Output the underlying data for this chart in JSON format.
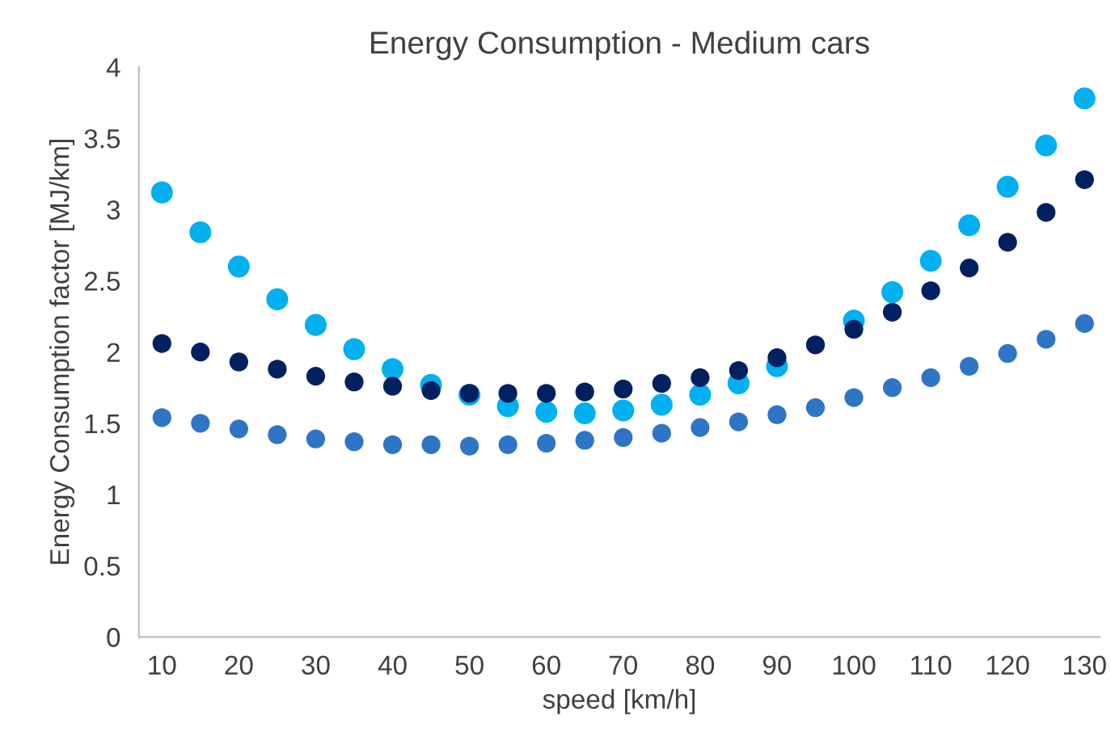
{
  "chart_data": {
    "type": "scatter",
    "title": "Energy Consumption - Medium cars",
    "xlabel": "speed [km/h]",
    "ylabel": "Energy Consumption factor [MJ/km]",
    "x": [
      10,
      15,
      20,
      25,
      30,
      35,
      40,
      45,
      50,
      55,
      60,
      65,
      70,
      75,
      80,
      85,
      90,
      95,
      100,
      105,
      110,
      115,
      120,
      125,
      130
    ],
    "series": [
      {
        "color": "#2e75c6",
        "values": [
          1.54,
          1.5,
          1.46,
          1.42,
          1.39,
          1.37,
          1.35,
          1.35,
          1.34,
          1.35,
          1.36,
          1.38,
          1.4,
          1.43,
          1.47,
          1.51,
          1.56,
          1.61,
          1.68,
          1.75,
          1.82,
          1.9,
          1.99,
          2.09,
          2.2
        ]
      },
      {
        "color": "#00b0f0",
        "values": [
          3.12,
          2.84,
          2.6,
          2.37,
          2.19,
          2.02,
          1.88,
          1.77,
          1.7,
          1.62,
          1.58,
          1.57,
          1.59,
          1.63,
          1.7,
          1.78,
          1.9,
          null,
          2.22,
          2.42,
          2.64,
          2.89,
          3.16,
          3.45,
          3.78
        ]
      },
      {
        "color": "#002060",
        "values": [
          2.06,
          2.0,
          1.93,
          1.88,
          1.83,
          1.79,
          1.76,
          1.73,
          1.71,
          1.71,
          1.71,
          1.72,
          1.74,
          1.78,
          1.82,
          1.87,
          1.96,
          2.05,
          2.16,
          2.28,
          2.43,
          2.59,
          2.77,
          2.98,
          3.21
        ]
      }
    ],
    "xlim": [
      7,
      132
    ],
    "xticks": [
      10,
      20,
      30,
      40,
      50,
      60,
      70,
      80,
      90,
      100,
      110,
      120,
      130
    ],
    "ylim": [
      0,
      4
    ],
    "yticks": [
      0,
      0.5,
      1,
      1.5,
      2,
      2.5,
      3,
      3.5,
      4
    ],
    "marker": "circle",
    "grid": false,
    "legend": false
  }
}
